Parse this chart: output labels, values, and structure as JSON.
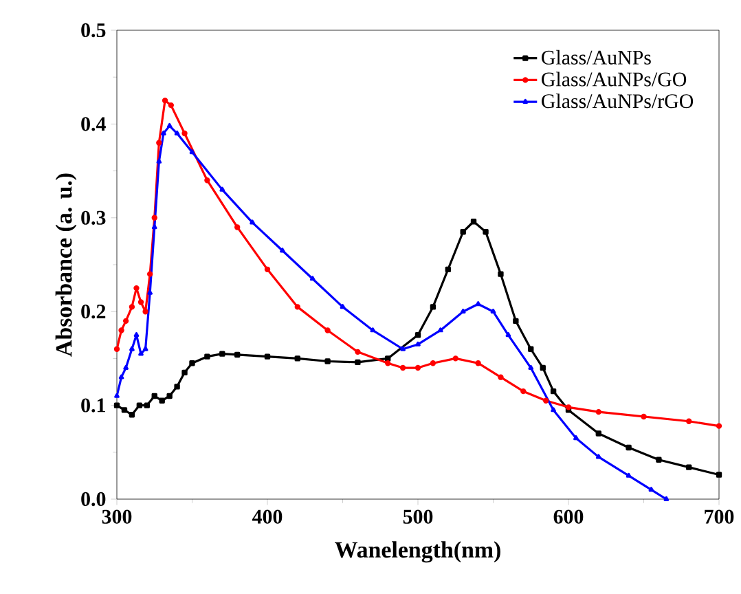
{
  "chart_data": {
    "type": "line",
    "xlabel": "Wanelength(nm)",
    "ylabel": "Absorbance (a. u.)",
    "xlim": [
      300,
      700
    ],
    "ylim": [
      0,
      0.5
    ],
    "xticks": [
      300,
      400,
      500,
      600,
      700
    ],
    "yticks": [
      {
        "value": 0,
        "label": "0.0"
      },
      {
        "value": 0.1,
        "label": "0.1"
      },
      {
        "value": 0.2,
        "label": "0.2"
      },
      {
        "value": 0.3,
        "label": "0.3"
      },
      {
        "value": 0.4,
        "label": "0.4"
      },
      {
        "value": 0.5,
        "label": "0.5"
      }
    ],
    "legend": "top right",
    "grid": false,
    "series": [
      {
        "name": "Glass/AuNPs",
        "color": "#000000",
        "marker": "square",
        "x": [
          300,
          305,
          310,
          315,
          320,
          325,
          330,
          335,
          340,
          345,
          350,
          360,
          370,
          380,
          400,
          420,
          440,
          460,
          480,
          500,
          510,
          520,
          530,
          537,
          545,
          555,
          565,
          575,
          583,
          590,
          600,
          620,
          640,
          660,
          680,
          700
        ],
        "values": [
          0.1,
          0.095,
          0.09,
          0.1,
          0.1,
          0.11,
          0.105,
          0.11,
          0.12,
          0.135,
          0.145,
          0.152,
          0.155,
          0.154,
          0.152,
          0.15,
          0.147,
          0.146,
          0.15,
          0.175,
          0.205,
          0.245,
          0.285,
          0.296,
          0.285,
          0.24,
          0.19,
          0.16,
          0.14,
          0.115,
          0.095,
          0.07,
          0.055,
          0.042,
          0.034,
          0.026
        ]
      },
      {
        "name": "Glass/AuNPs/GO",
        "color": "#ff0000",
        "marker": "circle",
        "x": [
          300,
          303,
          306,
          310,
          313,
          316,
          319,
          322,
          325,
          328,
          332,
          336,
          345,
          360,
          380,
          400,
          420,
          440,
          460,
          480,
          490,
          500,
          510,
          525,
          540,
          555,
          570,
          585,
          600,
          620,
          650,
          680,
          700
        ],
        "values": [
          0.16,
          0.18,
          0.19,
          0.205,
          0.225,
          0.21,
          0.2,
          0.24,
          0.3,
          0.38,
          0.425,
          0.42,
          0.39,
          0.34,
          0.29,
          0.245,
          0.205,
          0.18,
          0.157,
          0.145,
          0.14,
          0.14,
          0.145,
          0.15,
          0.145,
          0.13,
          0.115,
          0.105,
          0.098,
          0.093,
          0.088,
          0.083,
          0.078
        ]
      },
      {
        "name": "Glass/AuNPs/rGO",
        "color": "#0000ff",
        "marker": "triangle",
        "x": [
          300,
          303,
          306,
          310,
          313,
          316,
          319,
          322,
          325,
          328,
          331,
          335,
          340,
          350,
          370,
          390,
          410,
          430,
          450,
          470,
          490,
          500,
          515,
          530,
          540,
          550,
          560,
          575,
          590,
          605,
          620,
          640,
          655,
          665
        ],
        "values": [
          0.11,
          0.13,
          0.14,
          0.16,
          0.175,
          0.155,
          0.16,
          0.22,
          0.29,
          0.36,
          0.39,
          0.398,
          0.39,
          0.37,
          0.33,
          0.295,
          0.265,
          0.235,
          0.205,
          0.18,
          0.16,
          0.165,
          0.18,
          0.2,
          0.208,
          0.2,
          0.175,
          0.14,
          0.095,
          0.065,
          0.045,
          0.025,
          0.01,
          0.0
        ]
      }
    ]
  }
}
